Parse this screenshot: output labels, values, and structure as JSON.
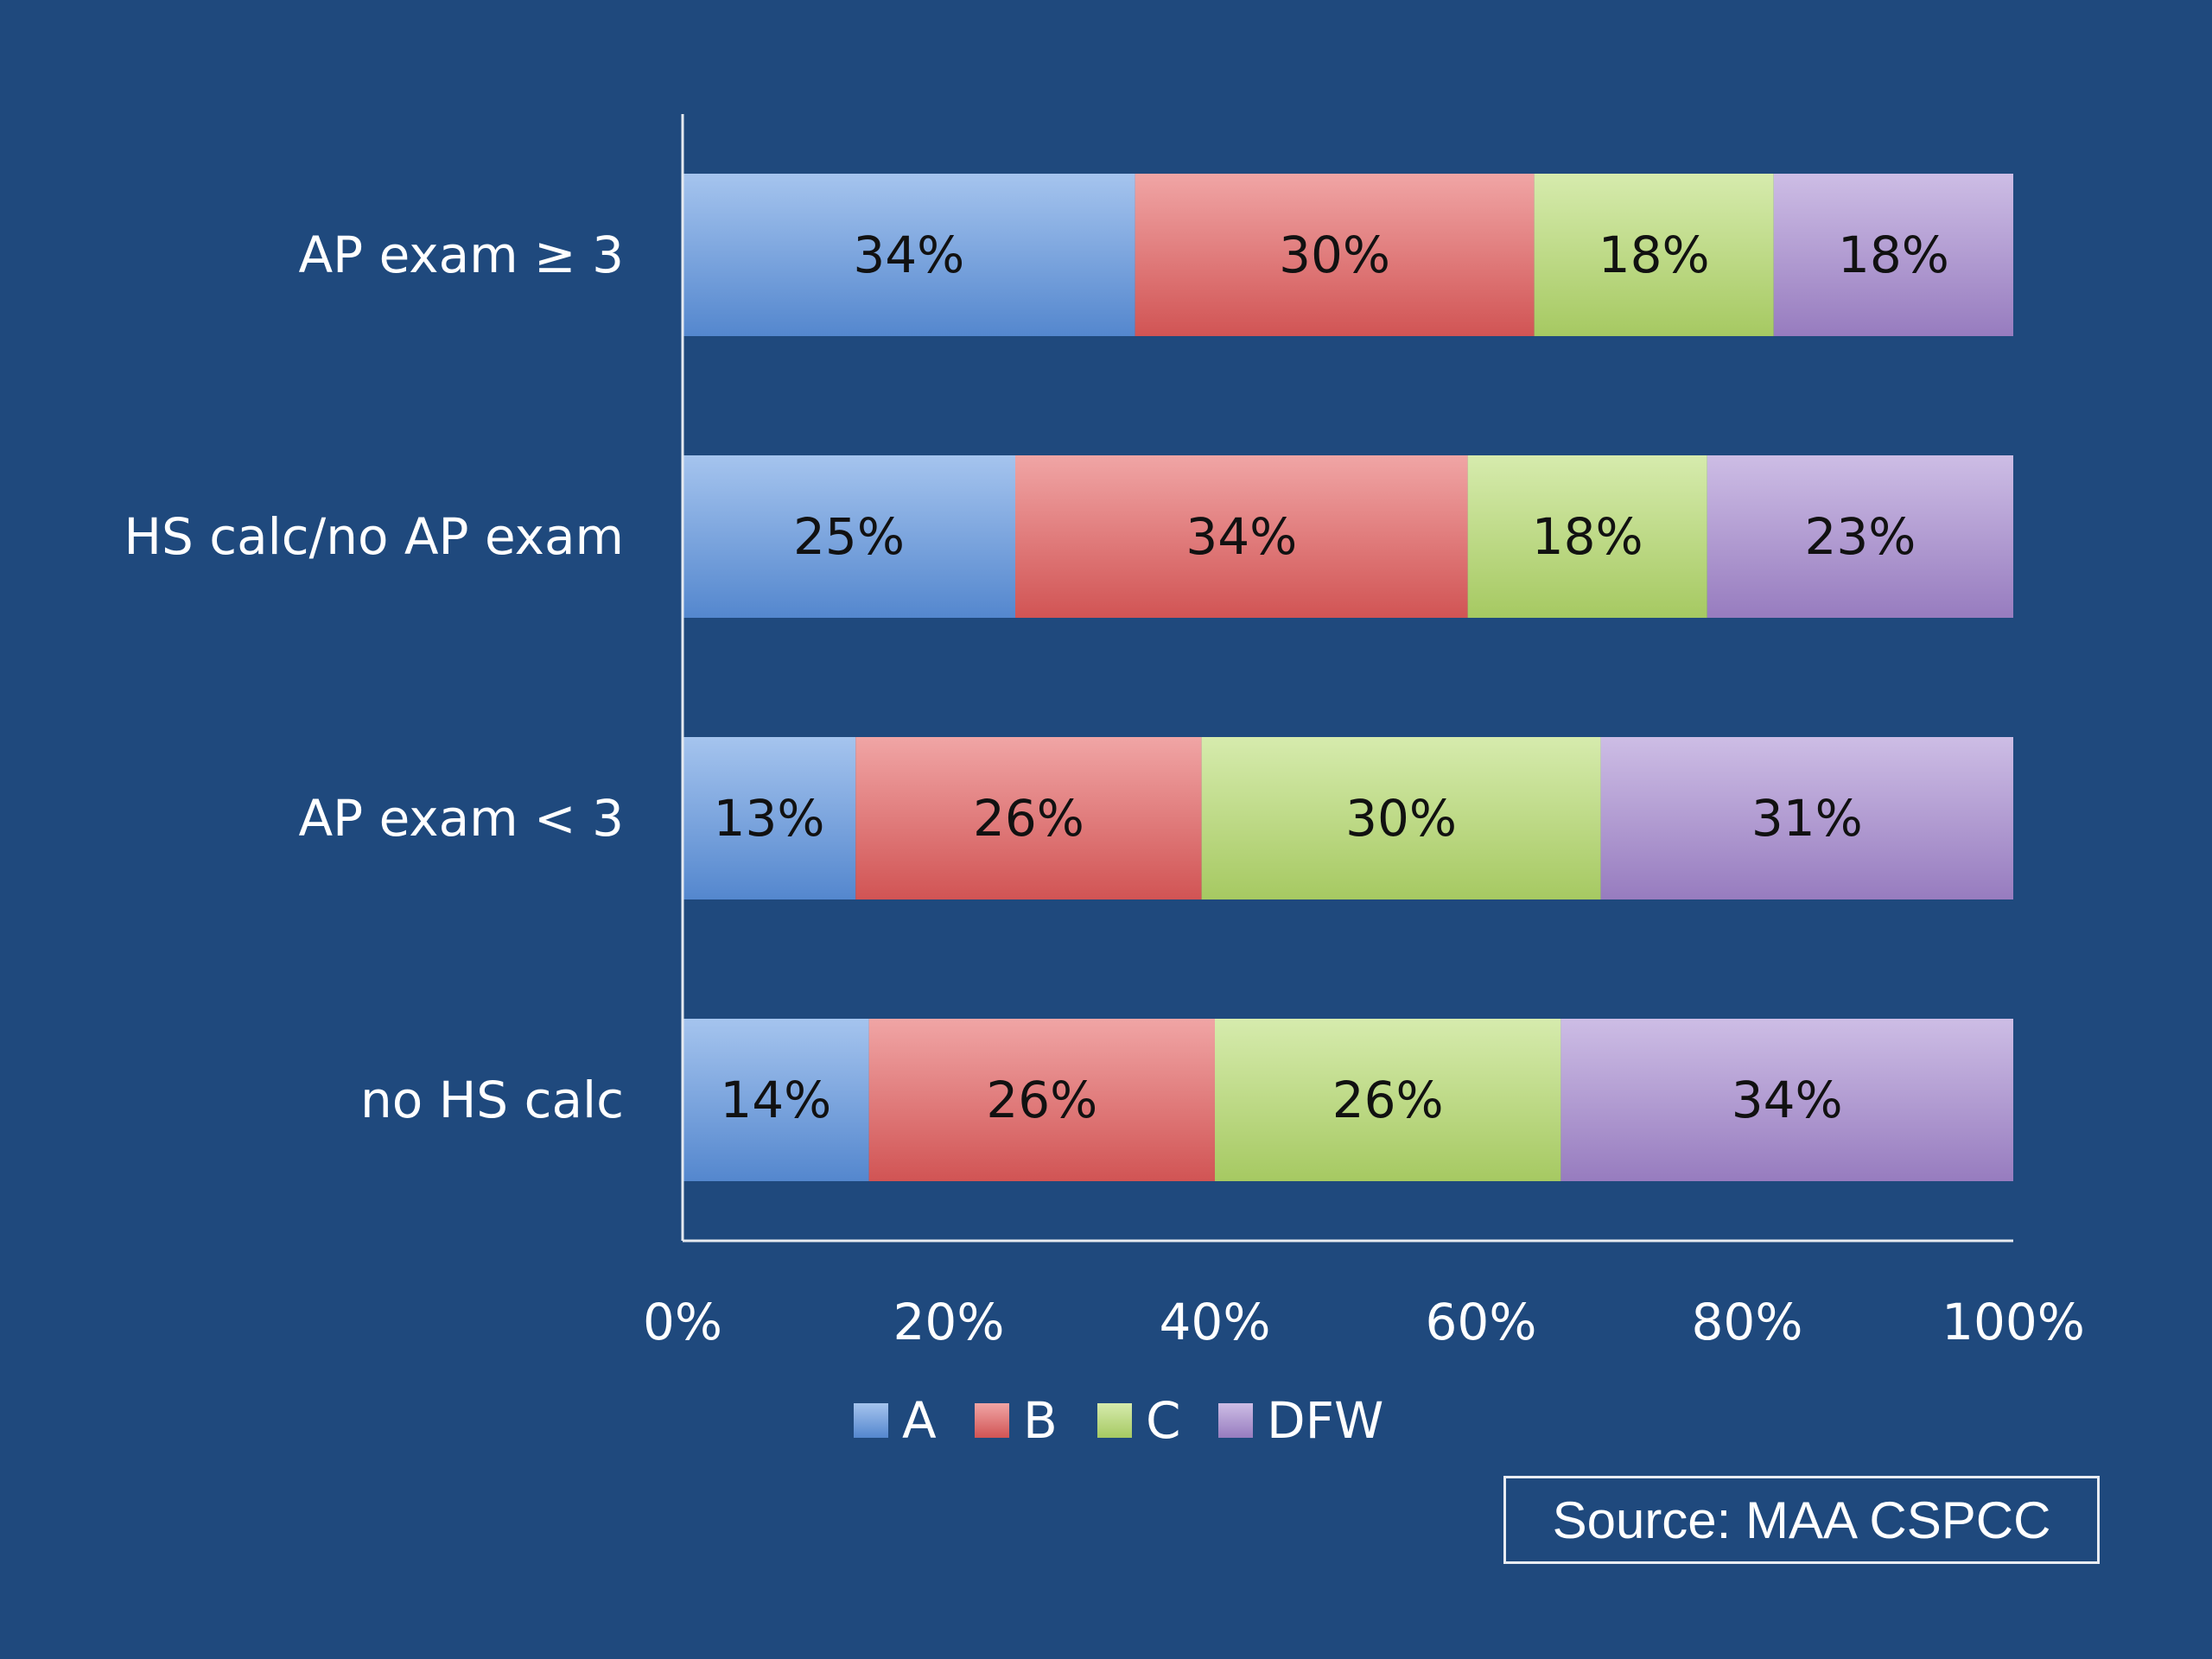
{
  "chart_data": {
    "type": "bar",
    "orientation": "horizontal",
    "stacked": "percent",
    "categories": [
      "AP exam ≥ 3",
      "HS calc/no AP exam",
      "AP exam < 3",
      "no HS calc"
    ],
    "series": [
      {
        "name": "A",
        "color": "#5b93e0",
        "values": [
          34,
          25,
          13,
          14
        ],
        "labels": [
          "34%",
          "25%",
          "13%",
          "14%"
        ]
      },
      {
        "name": "B",
        "color": "#e35b5b",
        "values": [
          30,
          34,
          26,
          26
        ],
        "labels": [
          "30%",
          "34%",
          "26%",
          "26%"
        ]
      },
      {
        "name": "C",
        "color": "#b4db6a",
        "values": [
          18,
          18,
          30,
          26
        ],
        "labels": [
          "18%",
          "18%",
          "30%",
          "26%"
        ]
      },
      {
        "name": "DFW",
        "color": "#a487d0",
        "values": [
          18,
          23,
          31,
          34
        ],
        "labels": [
          "18%",
          "23%",
          "31%",
          "34%"
        ]
      }
    ],
    "xticks": [
      "0%",
      "20%",
      "40%",
      "60%",
      "80%",
      "100%"
    ],
    "xlim": [
      0,
      100
    ],
    "grid": false,
    "legend_position": "bottom",
    "title": "",
    "xlabel": "",
    "ylabel": ""
  },
  "source_note": "Source: MAA CSPCC"
}
